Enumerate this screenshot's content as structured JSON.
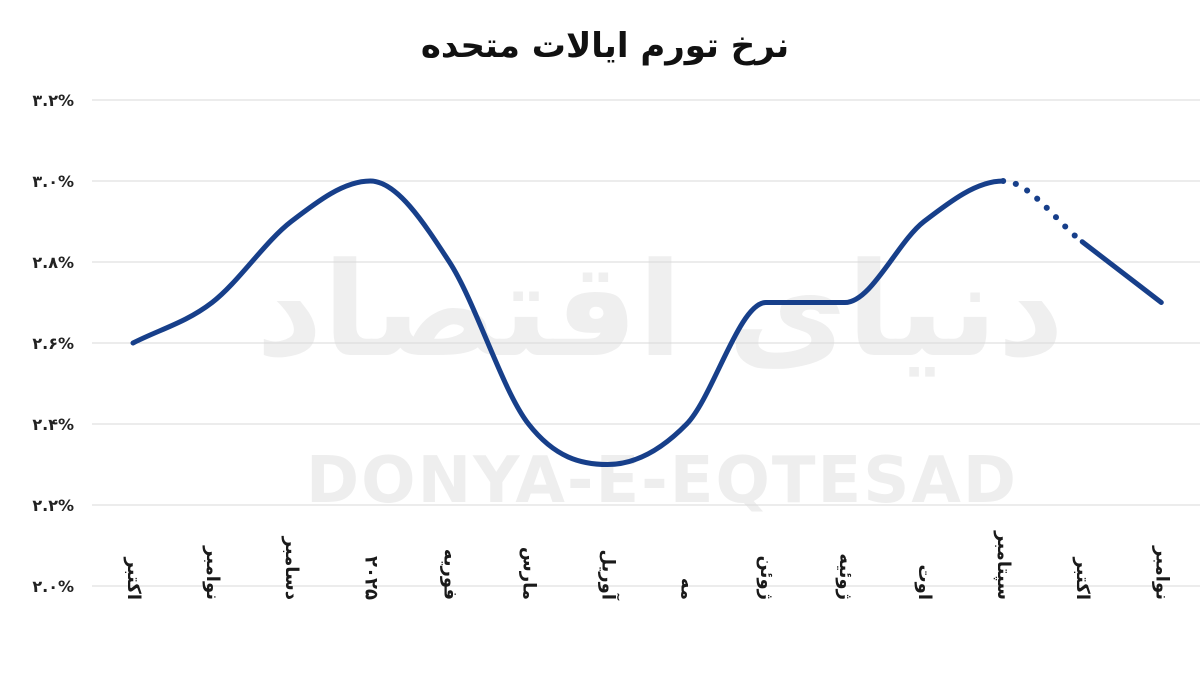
{
  "chart_data": {
    "type": "line",
    "title": "نرخ تورم ایالات متحده",
    "categories": [
      "اکتبر",
      "نوامبر",
      "دسامبر",
      "۲۰۲۵",
      "فوریه",
      "مارس",
      "آوریل",
      "مه",
      "ژوئن",
      "ژوئیه",
      "اوت",
      "سپتامبر",
      "اکتبر",
      "نوامبر"
    ],
    "series": [
      {
        "values": [
          2.6,
          2.7,
          2.9,
          3.0,
          2.8,
          2.4,
          2.3,
          2.4,
          2.7,
          2.7,
          2.9,
          3.0,
          2.85,
          2.7
        ],
        "solid_until_index": 11
      }
    ],
    "ylim": [
      2.0,
      3.2
    ],
    "yticks": [
      {
        "value": 3.2,
        "label": "۳.۲%"
      },
      {
        "value": 3.0,
        "label": "۳.۰%"
      },
      {
        "value": 2.8,
        "label": "۲.۸%"
      },
      {
        "value": 2.6,
        "label": "۲.۶%"
      },
      {
        "value": 2.4,
        "label": "۲.۴%"
      },
      {
        "value": 2.2,
        "label": "۲.۲%"
      },
      {
        "value": 2.0,
        "label": "۲.۰%"
      }
    ],
    "grid": true,
    "legend": "none",
    "line_color": "#173f8a",
    "grid_color": "#d9d9d9"
  },
  "watermark": {
    "persian": "دنیای اقتصاد",
    "latin": "DONYA-E-EQTESAD"
  }
}
